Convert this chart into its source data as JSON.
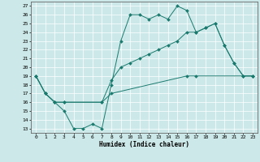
{
  "xlabel": "Humidex (Indice chaleur)",
  "bg_color": "#cce8e8",
  "line_color": "#1a7a6e",
  "grid_color": "#ffffff",
  "xlim": [
    -0.5,
    23.5
  ],
  "ylim": [
    12.5,
    27.5
  ],
  "yticks": [
    13,
    14,
    15,
    16,
    17,
    18,
    19,
    20,
    21,
    22,
    23,
    24,
    25,
    26,
    27
  ],
  "xticks": [
    0,
    1,
    2,
    3,
    4,
    5,
    6,
    7,
    8,
    9,
    10,
    11,
    12,
    13,
    14,
    15,
    16,
    17,
    18,
    19,
    20,
    21,
    22,
    23
  ],
  "series1": [
    [
      0,
      19
    ],
    [
      1,
      17
    ],
    [
      2,
      16
    ],
    [
      3,
      15
    ],
    [
      4,
      13
    ],
    [
      5,
      13
    ],
    [
      6,
      13.5
    ],
    [
      7,
      13
    ],
    [
      8,
      18
    ],
    [
      9,
      23
    ],
    [
      10,
      26
    ],
    [
      11,
      26
    ],
    [
      12,
      25.5
    ],
    [
      13,
      26
    ],
    [
      14,
      25.5
    ],
    [
      15,
      27
    ],
    [
      16,
      26.5
    ],
    [
      17,
      24
    ],
    [
      18,
      24.5
    ],
    [
      19,
      25
    ],
    [
      20,
      22.5
    ],
    [
      21,
      20.5
    ],
    [
      22,
      19
    ],
    [
      23,
      19
    ]
  ],
  "series2": [
    [
      0,
      19
    ],
    [
      1,
      17
    ],
    [
      2,
      16
    ],
    [
      3,
      16
    ],
    [
      7,
      16
    ],
    [
      8,
      18.5
    ],
    [
      9,
      20
    ],
    [
      10,
      20.5
    ],
    [
      11,
      21
    ],
    [
      12,
      21.5
    ],
    [
      13,
      22
    ],
    [
      14,
      22.5
    ],
    [
      15,
      23
    ],
    [
      16,
      24
    ],
    [
      17,
      24
    ],
    [
      18,
      24.5
    ],
    [
      19,
      25
    ],
    [
      20,
      22.5
    ],
    [
      21,
      20.5
    ],
    [
      22,
      19
    ],
    [
      23,
      19
    ]
  ],
  "series3": [
    [
      0,
      19
    ],
    [
      1,
      17
    ],
    [
      2,
      16
    ],
    [
      3,
      16
    ],
    [
      7,
      16
    ],
    [
      8,
      17
    ],
    [
      16,
      19
    ],
    [
      17,
      19
    ],
    [
      23,
      19
    ]
  ]
}
